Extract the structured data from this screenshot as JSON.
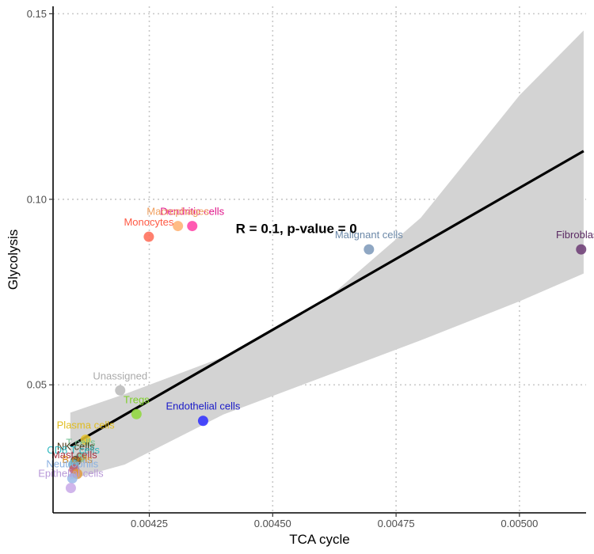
{
  "chart_data": {
    "type": "scatter",
    "title": "",
    "xlabel": "TCA cycle",
    "ylabel": "Glycolysis",
    "xlim": [
      0.004055,
      0.005135
    ],
    "ylim": [
      0.0155,
      0.152
    ],
    "x_ticks": [
      0.00425,
      0.0045,
      0.00475,
      0.005
    ],
    "x_tick_labels": [
      "0.00425",
      "0.00450",
      "0.00475",
      "0.00500"
    ],
    "y_ticks": [
      0.05,
      0.1,
      0.15
    ],
    "y_tick_labels": [
      "0.05",
      "0.10",
      "0.15"
    ],
    "grid": "dotted major gridlines",
    "annotation": "R = 0.1, p-value = 0",
    "regression": {
      "line": [
        [
          0.00409,
          0.0335
        ],
        [
          0.00513,
          0.113
        ]
      ],
      "ci_upper": [
        [
          0.00409,
          0.0425
        ],
        [
          0.0042,
          0.0475
        ],
        [
          0.0044,
          0.0575
        ],
        [
          0.0046,
          0.072
        ],
        [
          0.0048,
          0.095
        ],
        [
          0.005,
          0.128
        ],
        [
          0.00513,
          0.1455
        ]
      ],
      "ci_lower": [
        [
          0.00409,
          0.0245
        ],
        [
          0.0042,
          0.0285
        ],
        [
          0.0044,
          0.042
        ],
        [
          0.0046,
          0.052
        ],
        [
          0.0048,
          0.062
        ],
        [
          0.005,
          0.0725
        ],
        [
          0.00513,
          0.08
        ]
      ],
      "line_color": "#000000",
      "band_color": "#d3d3d3"
    },
    "points": [
      {
        "label": "Fibroblasts",
        "x": 0.005125,
        "y": 0.0865,
        "color": "#6b3a73",
        "label_color": "#5b2a63"
      },
      {
        "label": "Malignant cells",
        "x": 0.004695,
        "y": 0.0865,
        "color": "#7b98b8",
        "label_color": "#6b88a8"
      },
      {
        "label": "Dendritic cells",
        "x": 0.004337,
        "y": 0.0928,
        "color": "#ff3ea5",
        "label_color": "#e0158a"
      },
      {
        "label": "Macrophages",
        "x": 0.004308,
        "y": 0.0928,
        "color": "#ffb070",
        "label_color": "#f0a060"
      },
      {
        "label": "Monocytes",
        "x": 0.004249,
        "y": 0.0899,
        "color": "#ff6a55",
        "label_color": "#ff5a45"
      },
      {
        "label": "Endothelial cells",
        "x": 0.004359,
        "y": 0.0403,
        "color": "#2b2bff",
        "label_color": "#1a1ac8"
      },
      {
        "label": "Unassigned",
        "x": 0.004191,
        "y": 0.0485,
        "color": "#b8b8b8",
        "label_color": "#aaaaaa"
      },
      {
        "label": "Tregs",
        "x": 0.004224,
        "y": 0.0421,
        "color": "#8ed83a",
        "label_color": "#7ed02a"
      },
      {
        "label": "Plasma cells",
        "x": 0.004121,
        "y": 0.0352,
        "color": "#e8c62e",
        "label_color": "#e0bc1e"
      },
      {
        "label": "T cells",
        "x": 0.004111,
        "y": 0.0305,
        "color": "#7fc8a0",
        "label_color": "#72c090"
      },
      {
        "label": "NK cells",
        "x": 0.004101,
        "y": 0.0295,
        "color": "#5a4a2a",
        "label_color": "#4a3a1a"
      },
      {
        "label": "CD8 T cells",
        "x": 0.004096,
        "y": 0.0285,
        "color": "#6fb8c8",
        "label_color": "#30b8c0"
      },
      {
        "label": "Mast cells",
        "x": 0.004098,
        "y": 0.0272,
        "color": "#c85a6a",
        "label_color": "#a83040"
      },
      {
        "label": "B cells",
        "x": 0.004104,
        "y": 0.026,
        "color": "#e09a40",
        "label_color": "#d88a20"
      },
      {
        "label": "Neutrophils",
        "x": 0.004094,
        "y": 0.0248,
        "color": "#9ab8e8",
        "label_color": "#8ab0e0"
      },
      {
        "label": "Epithelial cells",
        "x": 0.004091,
        "y": 0.0222,
        "color": "#c8a8e8",
        "label_color": "#b898d8"
      }
    ]
  }
}
